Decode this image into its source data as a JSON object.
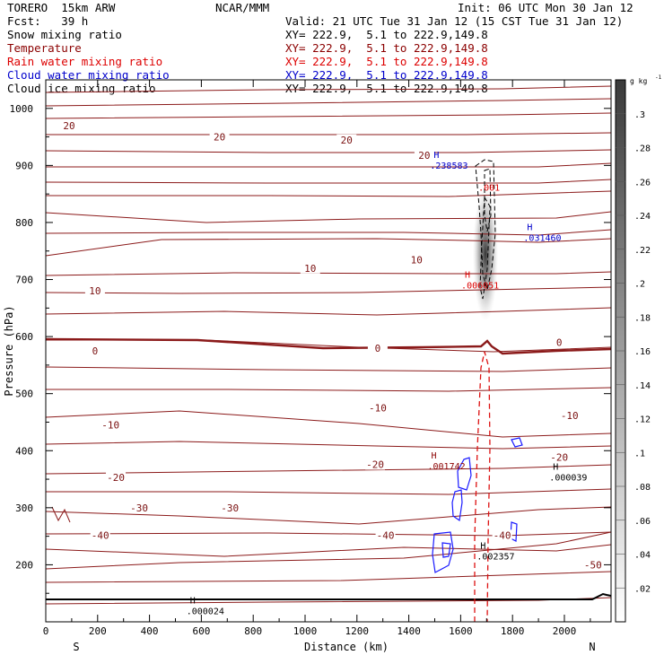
{
  "header": {
    "model_line": "TORERO  15km ARW",
    "center": "NCAR/MMM",
    "init": "Init: 06 UTC Mon 30 Jan 12",
    "fcst": "Fcst:   39 h",
    "valid": "Valid: 21 UTC Tue 31 Jan 12 (15 CST Tue 31 Jan 12)"
  },
  "fields": [
    {
      "name": "Snow mixing ratio",
      "xy": "XY= 222.9,  5.1 to 222.9,149.8",
      "color": "#000000"
    },
    {
      "name": "Temperature",
      "xy": "XY= 222.9,  5.1 to 222.9,149.8",
      "color": "#8b0000"
    },
    {
      "name": "Rain water mixing ratio",
      "xy": "XY= 222.9,  5.1 to 222.9,149.8",
      "color": "#dd0000"
    },
    {
      "name": "Cloud water mixing ratio",
      "xy": "XY= 222.9,  5.1 to 222.9,149.8",
      "color": "#0000cc"
    },
    {
      "name": "Cloud ice mixing ratio",
      "xy": "XY= 222.9,  5.1 to 222.9,149.8",
      "color": "#000000"
    }
  ],
  "chart_data": {
    "type": "contour",
    "xlabel": "Distance (km)",
    "ylabel": "Pressure (hPa)",
    "xlim": [
      0,
      2180
    ],
    "ylim": [
      1050,
      100
    ],
    "x_ticks": [
      0,
      200,
      400,
      600,
      800,
      1000,
      1200,
      1400,
      1600,
      1800,
      2000
    ],
    "y_ticks": [
      200,
      300,
      400,
      500,
      600,
      700,
      800,
      900,
      1000
    ],
    "x_end_labels": {
      "left": "S",
      "right": "N"
    },
    "colorbar": {
      "unit": "g kg",
      "ticks": [
        ".02",
        ".04",
        ".06",
        ".08",
        ".1",
        ".12",
        ".14",
        ".16",
        ".18",
        ".2",
        ".22",
        ".24",
        ".26",
        ".28",
        ".3"
      ]
    },
    "temperature_labels": [
      {
        "text": "-50",
        "x": 2110,
        "p": 200
      },
      {
        "text": "-40",
        "x": 210,
        "p": 252
      },
      {
        "text": "-40",
        "x": 1310,
        "p": 252
      },
      {
        "text": "-40",
        "x": 1760,
        "p": 252
      },
      {
        "text": "-30",
        "x": 360,
        "p": 300
      },
      {
        "text": "-30",
        "x": 710,
        "p": 300
      },
      {
        "text": "-20",
        "x": 270,
        "p": 353
      },
      {
        "text": "-20",
        "x": 1270,
        "p": 376
      },
      {
        "text": "-20",
        "x": 1980,
        "p": 389
      },
      {
        "text": "-10",
        "x": 250,
        "p": 445
      },
      {
        "text": "-10",
        "x": 1280,
        "p": 475
      },
      {
        "text": "-10",
        "x": 2020,
        "p": 462
      },
      {
        "text": "0",
        "x": 190,
        "p": 575
      },
      {
        "text": "0",
        "x": 1280,
        "p": 580
      },
      {
        "text": "0",
        "x": 1980,
        "p": 590
      },
      {
        "text": "10",
        "x": 190,
        "p": 680
      },
      {
        "text": "10",
        "x": 1020,
        "p": 720
      },
      {
        "text": "10",
        "x": 1430,
        "p": 735
      },
      {
        "text": "20",
        "x": 90,
        "p": 970
      },
      {
        "text": "20",
        "x": 670,
        "p": 950
      },
      {
        "text": "20",
        "x": 1160,
        "p": 945
      },
      {
        "text": "20",
        "x": 1460,
        "p": 918
      }
    ],
    "maxima": [
      {
        "field": "Cloud ice mixing ratio",
        "value": ".000024",
        "x": 570,
        "p": 126
      },
      {
        "field": "Snow mixing ratio",
        "value": ".002357",
        "x": 1690,
        "p": 222
      },
      {
        "field": "Temperature",
        "value": ".001742",
        "x": 1500,
        "p": 380
      },
      {
        "field": "Cloud ice mixing ratio",
        "value": ".000039",
        "x": 1970,
        "p": 360
      },
      {
        "field": "Rain water mixing ratio",
        "value": ".006051",
        "x": 1630,
        "p": 697
      },
      {
        "field": "Cloud water mixing ratio",
        "value": ".031460",
        "x": 1870,
        "p": 780
      },
      {
        "field": "Cloud water mixing ratio",
        "value": ".238583",
        "x": 1510,
        "p": 907
      }
    ],
    "rain_contour_label": {
      "text": ".001",
      "x": 1710,
      "p": 856
    },
    "grid": false,
    "legend": "top-left"
  }
}
